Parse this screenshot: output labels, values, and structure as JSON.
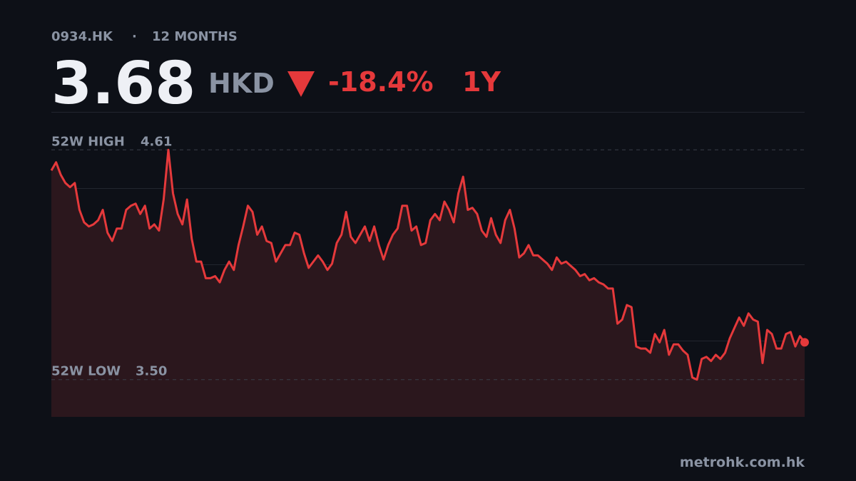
{
  "header": {
    "ticker": "0934.HK",
    "period": "12 MONTHS",
    "price": "3.68",
    "currency": "HKD",
    "change": "-18.4%",
    "range": "1Y"
  },
  "chart_data": {
    "type": "line",
    "color": "#e5393b",
    "fill": "#2b171d",
    "ylim": [
      3.32,
      4.79
    ],
    "high_label": "52W HIGH",
    "high": 4.61,
    "low_label": "52W LOW",
    "low": {
      "value": 3.5,
      "label": "3.50"
    },
    "values": [
      4.51,
      4.55,
      4.49,
      4.45,
      4.43,
      4.45,
      4.32,
      4.26,
      4.24,
      4.25,
      4.27,
      4.32,
      4.21,
      4.17,
      4.23,
      4.23,
      4.32,
      4.34,
      4.35,
      4.3,
      4.34,
      4.23,
      4.25,
      4.22,
      4.37,
      4.61,
      4.4,
      4.3,
      4.25,
      4.37,
      4.18,
      4.07,
      4.07,
      3.99,
      3.99,
      4.0,
      3.97,
      4.03,
      4.07,
      4.03,
      4.15,
      4.24,
      4.34,
      4.31,
      4.2,
      4.24,
      4.17,
      4.16,
      4.07,
      4.11,
      4.15,
      4.15,
      4.21,
      4.2,
      4.11,
      4.04,
      4.07,
      4.1,
      4.07,
      4.03,
      4.06,
      4.16,
      4.2,
      4.31,
      4.19,
      4.16,
      4.2,
      4.24,
      4.17,
      4.24,
      4.15,
      4.08,
      4.15,
      4.2,
      4.23,
      4.34,
      4.34,
      4.22,
      4.24,
      4.15,
      4.16,
      4.27,
      4.3,
      4.27,
      4.36,
      4.32,
      4.26,
      4.4,
      4.48,
      4.32,
      4.33,
      4.3,
      4.22,
      4.19,
      4.28,
      4.2,
      4.16,
      4.27,
      4.32,
      4.23,
      4.09,
      4.11,
      4.15,
      4.1,
      4.1,
      4.08,
      4.06,
      4.03,
      4.09,
      4.06,
      4.07,
      4.05,
      4.03,
      4.0,
      4.01,
      3.98,
      3.99,
      3.97,
      3.96,
      3.94,
      3.94,
      3.77,
      3.79,
      3.86,
      3.85,
      3.66,
      3.65,
      3.65,
      3.63,
      3.72,
      3.68,
      3.74,
      3.62,
      3.67,
      3.67,
      3.64,
      3.62,
      3.51,
      3.5,
      3.6,
      3.61,
      3.59,
      3.62,
      3.6,
      3.63,
      3.7,
      3.75,
      3.8,
      3.76,
      3.82,
      3.79,
      3.78,
      3.58,
      3.74,
      3.72,
      3.65,
      3.65,
      3.72,
      3.73,
      3.66,
      3.71,
      3.68
    ]
  },
  "footer": {
    "source": "metrohk.com.hk"
  }
}
